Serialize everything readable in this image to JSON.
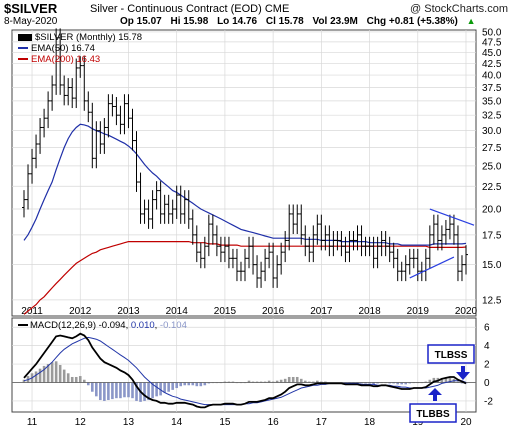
{
  "header": {
    "symbol": "$SILVER",
    "description": "Silver - Continuous Contract (EOD)",
    "exchange": "CME",
    "watermark": "@ StockCharts.com",
    "date": "8-May-2020",
    "open": "Op 15.07",
    "high": "Hi 15.98",
    "low": "Lo 14.76",
    "close": "Cl 15.78",
    "volume": "Vol 23.9M",
    "change": "Chg +0.81 (+5.38%)",
    "change_arrow": "▲"
  },
  "legend": {
    "price": "$SILVER (Monthly) 15.78",
    "ema50": "EMA(50) 16.74",
    "ema200": "EMA(200) 16.43",
    "macd_label": "MACD(12,26,9)",
    "macd_v1": "-0.094",
    "macd_v2": "0.010",
    "macd_v3": "-0.104"
  },
  "annotations": {
    "top": "TLBSS",
    "bottom": "TLBBS"
  },
  "colors": {
    "price": "#000000",
    "ema50": "#1f2fa8",
    "ema200": "#c00000",
    "macd": "#000000",
    "signal": "#2236a8",
    "hist": "#8a96c8",
    "hist_pos": "#9a9a9a",
    "box": "#1a23c8",
    "trend": "#2a3fe0",
    "grid": "#d8d8d8"
  },
  "chart_data": [
    {
      "type": "ohlc",
      "title": "$SILVER (Monthly)",
      "x_ticks": [
        "2011",
        "2012",
        "2013",
        "2014",
        "2015",
        "2016",
        "2017",
        "2018",
        "2019",
        "2020"
      ],
      "y_ticks": [
        12.5,
        15.0,
        17.5,
        20.0,
        22.5,
        25.0,
        27.5,
        30.0,
        32.5,
        35.0,
        37.5,
        40.0,
        42.5,
        45.0,
        47.5,
        50.0
      ],
      "ylim": [
        11.5,
        50.5
      ],
      "log_scale": true,
      "grid": true,
      "legend_position": "top-left",
      "series": [
        {
          "name": "EMA(50)",
          "values_note": "line"
        },
        {
          "name": "EMA(200)",
          "values_note": "line"
        }
      ],
      "closes": [
        21.0,
        24.0,
        26.0,
        28.0,
        30.5,
        32.0,
        35.0,
        38.0,
        48.5,
        38.0,
        36.0,
        37.5,
        35.5,
        41.5,
        42.0,
        35.0,
        33.0,
        26.0,
        30.0,
        28.0,
        30.5,
        34.5,
        34.0,
        32.5,
        31.0,
        34.5,
        32.0,
        28.5,
        23.0,
        19.5,
        20.0,
        19.0,
        21.0,
        22.0,
        19.5,
        20.5,
        19.5,
        20.0,
        21.5,
        19.5,
        21.0,
        19.0,
        17.5,
        16.0,
        15.5,
        16.5,
        18.5,
        17.5,
        16.5,
        16.0,
        16.5,
        15.5,
        15.5,
        14.5,
        14.5,
        15.5,
        16.5,
        15.0,
        14.0,
        14.5,
        15.5,
        16.0,
        14.0,
        15.0,
        16.0,
        17.0,
        19.5,
        18.5,
        19.5,
        17.5,
        16.5,
        16.0,
        17.5,
        18.5,
        17.0,
        17.5,
        16.5,
        17.0,
        17.0,
        16.5,
        16.0,
        17.0,
        17.0,
        17.5,
        16.5,
        16.5,
        16.5,
        15.5,
        16.5,
        17.0,
        16.5,
        16.0,
        15.5,
        14.5,
        14.5,
        15.0,
        15.5,
        15.5,
        14.5,
        14.5,
        15.5,
        17.5,
        18.5,
        17.0,
        17.5,
        18.0,
        18.5,
        17.5,
        14.5,
        15.0,
        15.8
      ],
      "ema50": [
        17.0,
        17.5,
        18.2,
        19.0,
        20.0,
        21.0,
        22.0,
        23.0,
        24.5,
        26.0,
        27.5,
        28.8,
        29.8,
        30.5,
        31.0,
        30.9,
        30.7,
        30.3,
        30.0,
        29.8,
        29.5,
        29.3,
        29.0,
        28.7,
        28.4,
        28.1,
        27.7,
        27.2,
        26.6,
        25.9,
        25.2,
        24.6,
        24.1,
        23.7,
        23.2,
        22.8,
        22.4,
        22.0,
        21.8,
        21.5,
        21.2,
        20.9,
        20.6,
        20.3,
        20.0,
        19.8,
        19.6,
        19.4,
        19.2,
        19.0,
        18.8,
        18.6,
        18.4,
        18.2,
        18.0,
        17.9,
        17.8,
        17.7,
        17.6,
        17.5,
        17.4,
        17.3,
        17.2,
        17.2,
        17.2,
        17.2,
        17.2,
        17.2,
        17.2,
        17.2,
        17.1,
        17.1,
        17.1,
        17.1,
        17.0,
        17.0,
        17.0,
        17.0,
        17.0,
        16.9,
        16.9,
        16.9,
        16.9,
        16.9,
        16.9,
        16.9,
        16.8,
        16.8,
        16.8,
        16.8,
        16.8,
        16.7,
        16.7,
        16.7,
        16.6,
        16.6,
        16.6,
        16.6,
        16.6,
        16.6,
        16.6,
        16.6,
        16.7,
        16.7,
        16.7,
        16.7,
        16.7,
        16.7,
        16.7,
        16.7,
        16.74
      ],
      "ema200": [
        11.6,
        11.8,
        12.0,
        12.2,
        12.5,
        12.7,
        13.0,
        13.3,
        13.6,
        13.9,
        14.2,
        14.5,
        14.8,
        15.1,
        15.3,
        15.5,
        15.7,
        15.9,
        16.0,
        16.2,
        16.3,
        16.4,
        16.5,
        16.6,
        16.7,
        16.8,
        16.9,
        16.9,
        16.9,
        16.9,
        16.9,
        16.9,
        16.9,
        16.9,
        16.9,
        16.9,
        16.9,
        16.9,
        16.9,
        16.9,
        16.9,
        16.9,
        16.8,
        16.8,
        16.8,
        16.8,
        16.7,
        16.7,
        16.7,
        16.6,
        16.6,
        16.6,
        16.6,
        16.6,
        16.5,
        16.5,
        16.5,
        16.5,
        16.5,
        16.5,
        16.5,
        16.5,
        16.5,
        16.5,
        16.5,
        16.5,
        16.5,
        16.5,
        16.5,
        16.5,
        16.5,
        16.5,
        16.5,
        16.5,
        16.5,
        16.5,
        16.5,
        16.5,
        16.5,
        16.5,
        16.5,
        16.5,
        16.5,
        16.5,
        16.5,
        16.5,
        16.5,
        16.5,
        16.5,
        16.5,
        16.5,
        16.5,
        16.5,
        16.5,
        16.5,
        16.5,
        16.5,
        16.5,
        16.5,
        16.5,
        16.5,
        16.4,
        16.4,
        16.4,
        16.4,
        16.4,
        16.4,
        16.4,
        16.4,
        16.4,
        16.43
      ]
    },
    {
      "type": "line",
      "title": "MACD(12,26,9)",
      "y_ticks": [
        6,
        4,
        2,
        0,
        -2
      ],
      "ylim": [
        -3.2,
        7.0
      ],
      "series": [
        {
          "name": "MACD",
          "values": [
            0.5,
            1.0,
            1.5,
            2.0,
            2.6,
            3.2,
            3.8,
            4.4,
            5.0,
            5.1,
            5.0,
            4.9,
            4.8,
            5.0,
            5.3,
            5.1,
            4.6,
            3.8,
            3.2,
            2.6,
            2.2,
            2.0,
            1.8,
            1.6,
            1.3,
            1.1,
            0.8,
            0.3,
            -0.4,
            -1.0,
            -1.4,
            -1.7,
            -1.9,
            -2.0,
            -2.2,
            -2.2,
            -2.3,
            -2.3,
            -2.2,
            -2.2,
            -2.2,
            -2.3,
            -2.4,
            -2.6,
            -2.7,
            -2.7,
            -2.5,
            -2.4,
            -2.4,
            -2.4,
            -2.3,
            -2.3,
            -2.3,
            -2.4,
            -2.4,
            -2.3,
            -2.1,
            -2.1,
            -2.1,
            -2.0,
            -1.9,
            -1.7,
            -1.7,
            -1.5,
            -1.3,
            -1.0,
            -0.6,
            -0.4,
            -0.2,
            -0.2,
            -0.3,
            -0.3,
            -0.2,
            -0.1,
            -0.1,
            -0.1,
            -0.1,
            -0.1,
            -0.1,
            -0.1,
            -0.2,
            -0.2,
            -0.2,
            -0.2,
            -0.3,
            -0.3,
            -0.3,
            -0.4,
            -0.4,
            -0.3,
            -0.3,
            -0.4,
            -0.5,
            -0.6,
            -0.7,
            -0.7,
            -0.7,
            -0.6,
            -0.6,
            -0.6,
            -0.5,
            -0.2,
            0.1,
            0.2,
            0.4,
            0.5,
            0.6,
            0.6,
            0.3,
            0.1,
            -0.094
          ]
        },
        {
          "name": "Signal",
          "values": [
            0.2,
            0.3,
            0.5,
            0.8,
            1.1,
            1.4,
            1.8,
            2.2,
            2.7,
            3.2,
            3.6,
            3.9,
            4.2,
            4.4,
            4.6,
            4.8,
            4.9,
            4.8,
            4.7,
            4.5,
            4.2,
            3.9,
            3.6,
            3.3,
            3.0,
            2.7,
            2.4,
            2.0,
            1.6,
            1.1,
            0.6,
            0.2,
            -0.2,
            -0.5,
            -0.8,
            -1.1,
            -1.3,
            -1.5,
            -1.6,
            -1.8,
            -1.9,
            -2.0,
            -2.1,
            -2.2,
            -2.3,
            -2.4,
            -2.4,
            -2.4,
            -2.4,
            -2.4,
            -2.4,
            -2.4,
            -2.4,
            -2.4,
            -2.4,
            -2.3,
            -2.3,
            -2.2,
            -2.2,
            -2.1,
            -2.0,
            -1.9,
            -1.8,
            -1.7,
            -1.6,
            -1.4,
            -1.2,
            -1.0,
            -0.8,
            -0.6,
            -0.5,
            -0.4,
            -0.3,
            -0.3,
            -0.2,
            -0.2,
            -0.1,
            -0.1,
            -0.1,
            -0.1,
            -0.1,
            -0.1,
            -0.1,
            -0.1,
            -0.2,
            -0.2,
            -0.2,
            -0.2,
            -0.3,
            -0.3,
            -0.3,
            -0.3,
            -0.4,
            -0.4,
            -0.5,
            -0.5,
            -0.6,
            -0.6,
            -0.6,
            -0.6,
            -0.6,
            -0.5,
            -0.4,
            -0.3,
            -0.1,
            0.0,
            0.1,
            0.2,
            0.2,
            0.2,
            0.01
          ]
        }
      ]
    }
  ]
}
